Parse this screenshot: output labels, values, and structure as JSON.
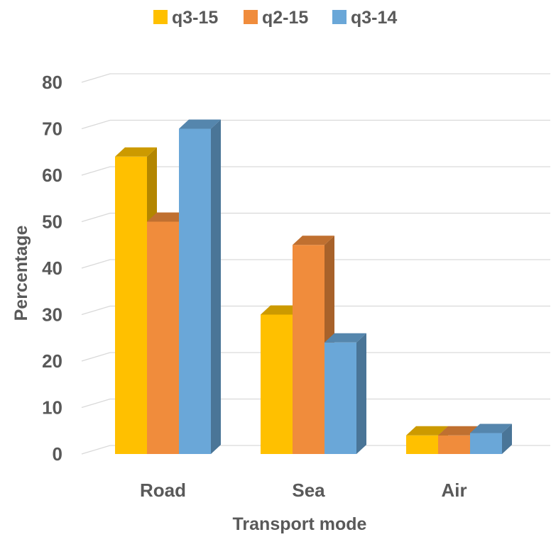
{
  "chart_data": {
    "type": "bar",
    "categories": [
      "Road",
      "Sea",
      "Air"
    ],
    "series": [
      {
        "name": "q3-15",
        "values": [
          64,
          30,
          4
        ],
        "color": "#ffc000"
      },
      {
        "name": "q2-15",
        "values": [
          50,
          45,
          4
        ],
        "color": "#f08c3c"
      },
      {
        "name": "q3-14",
        "values": [
          70,
          24,
          4.5
        ],
        "color": "#6aa7d8"
      }
    ],
    "xlabel": "Transport mode",
    "ylabel": "Percentage",
    "ylim": [
      0,
      80
    ],
    "yticks": [
      "0",
      "10",
      "20",
      "30",
      "40",
      "50",
      "60",
      "70",
      "80"
    ],
    "legend_position": "top",
    "grid": true,
    "style": "3d-clustered-column"
  }
}
